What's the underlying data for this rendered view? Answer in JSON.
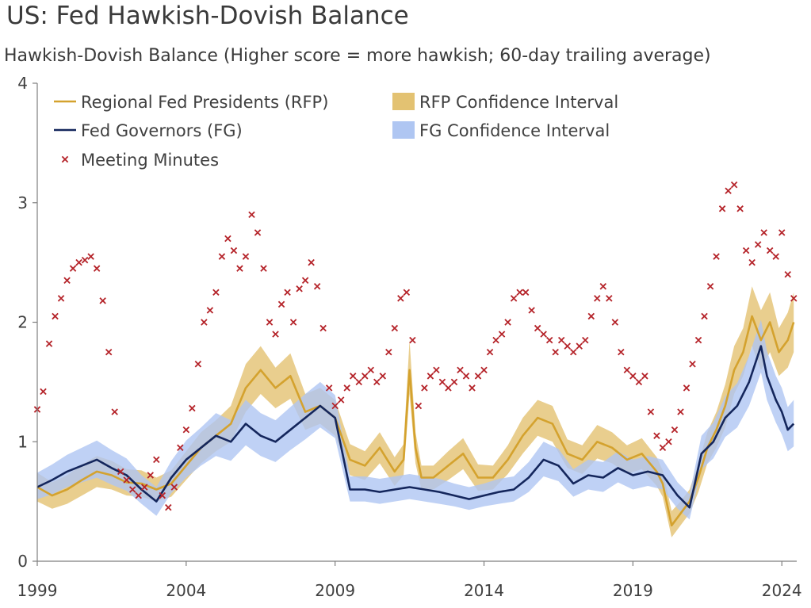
{
  "title": "US: Fed Hawkish-Dovish Balance",
  "colors": {
    "rfp_line": "#D4A22E",
    "rfp_band": "#E3C272",
    "fg_line": "#14265C",
    "fg_band": "#AFC6F2",
    "minutes_marker": "#B5242A",
    "axis": "#7F7F7F",
    "text": "#404040"
  },
  "chart_data": {
    "type": "line",
    "title": "US: Fed Hawkish-Dovish Balance",
    "subtitle": "Hawkish-Dovish Balance (Higher score = more hawkish; 60-day trailing average)",
    "xlabel": "",
    "ylabel": "",
    "xlim": [
      1999.0,
      2024.5
    ],
    "ylim": [
      0,
      4
    ],
    "x_ticks": [
      1999,
      2004,
      2009,
      2014,
      2019,
      2024
    ],
    "y_ticks": [
      0,
      1,
      2,
      3,
      4
    ],
    "grid": false,
    "legend_position": "top-left",
    "legend": [
      {
        "label": "Regional Fed Presidents (RFP)",
        "kind": "line",
        "series": "rfp"
      },
      {
        "label": "RFP Confidence Interval",
        "kind": "band",
        "series": "rfp_ci"
      },
      {
        "label": "Fed Governors (FG)",
        "kind": "line",
        "series": "fg"
      },
      {
        "label": "FG Confidence Interval",
        "kind": "band",
        "series": "fg_ci"
      },
      {
        "label": "Meeting Minutes",
        "kind": "marker",
        "series": "minutes"
      }
    ],
    "series": [
      {
        "id": "rfp",
        "name": "Regional Fed Presidents (RFP)",
        "x": [
          1999.0,
          1999.5,
          2000.0,
          2000.5,
          2001.0,
          2001.5,
          2002.0,
          2002.5,
          2003.0,
          2003.5,
          2004.0,
          2004.5,
          2005.0,
          2005.5,
          2006.0,
          2006.5,
          2007.0,
          2007.5,
          2008.0,
          2008.5,
          2009.0,
          2009.5,
          2010.0,
          2010.5,
          2011.0,
          2011.3,
          2011.5,
          2011.7,
          2011.9,
          2012.3,
          2012.8,
          2013.3,
          2013.8,
          2014.3,
          2014.8,
          2015.3,
          2015.8,
          2016.3,
          2016.8,
          2017.3,
          2017.8,
          2018.3,
          2018.8,
          2019.3,
          2019.8,
          2020.0,
          2020.3,
          2020.6,
          2020.9,
          2021.2,
          2021.5,
          2021.8,
          2022.1,
          2022.4,
          2022.7,
          2023.0,
          2023.3,
          2023.6,
          2023.9,
          2024.2,
          2024.4
        ],
        "values": [
          0.62,
          0.55,
          0.6,
          0.68,
          0.75,
          0.72,
          0.66,
          0.65,
          0.6,
          0.65,
          0.8,
          0.95,
          1.05,
          1.15,
          1.45,
          1.6,
          1.45,
          1.55,
          1.25,
          1.3,
          1.2,
          0.85,
          0.8,
          0.95,
          0.75,
          0.85,
          1.6,
          0.95,
          0.7,
          0.7,
          0.8,
          0.9,
          0.7,
          0.7,
          0.85,
          1.05,
          1.2,
          1.15,
          0.9,
          0.85,
          1.0,
          0.95,
          0.85,
          0.9,
          0.75,
          0.65,
          0.3,
          0.4,
          0.5,
          0.7,
          0.95,
          1.1,
          1.3,
          1.6,
          1.75,
          2.05,
          1.85,
          2.0,
          1.75,
          1.85,
          2.0
        ]
      },
      {
        "id": "rfp_ci",
        "name": "RFP Confidence Interval",
        "x": [
          1999.0,
          1999.5,
          2000.0,
          2000.5,
          2001.0,
          2001.5,
          2002.0,
          2002.5,
          2003.0,
          2003.5,
          2004.0,
          2004.5,
          2005.0,
          2005.5,
          2006.0,
          2006.5,
          2007.0,
          2007.5,
          2008.0,
          2008.5,
          2009.0,
          2009.5,
          2010.0,
          2010.5,
          2011.0,
          2011.3,
          2011.5,
          2011.7,
          2011.9,
          2012.3,
          2012.8,
          2013.3,
          2013.8,
          2014.3,
          2014.8,
          2015.3,
          2015.8,
          2016.3,
          2016.8,
          2017.3,
          2017.8,
          2018.3,
          2018.8,
          2019.3,
          2019.8,
          2020.0,
          2020.3,
          2020.6,
          2020.9,
          2021.2,
          2021.5,
          2021.8,
          2022.1,
          2022.4,
          2022.7,
          2023.0,
          2023.3,
          2023.6,
          2023.9,
          2024.2,
          2024.4
        ],
        "lower": [
          0.5,
          0.44,
          0.48,
          0.55,
          0.62,
          0.6,
          0.55,
          0.54,
          0.5,
          0.54,
          0.68,
          0.82,
          0.92,
          1.0,
          1.25,
          1.4,
          1.28,
          1.36,
          1.1,
          1.15,
          1.05,
          0.72,
          0.68,
          0.82,
          0.63,
          0.72,
          1.4,
          0.82,
          0.6,
          0.6,
          0.68,
          0.77,
          0.59,
          0.6,
          0.73,
          0.9,
          1.05,
          1.0,
          0.78,
          0.73,
          0.86,
          0.82,
          0.73,
          0.77,
          0.63,
          0.54,
          0.2,
          0.3,
          0.4,
          0.58,
          0.82,
          0.95,
          1.12,
          1.4,
          1.55,
          1.8,
          1.6,
          1.75,
          1.55,
          1.62,
          1.75
        ],
        "upper": [
          0.74,
          0.66,
          0.72,
          0.81,
          0.88,
          0.84,
          0.77,
          0.76,
          0.7,
          0.76,
          0.92,
          1.08,
          1.18,
          1.3,
          1.65,
          1.8,
          1.62,
          1.74,
          1.4,
          1.45,
          1.35,
          0.98,
          0.92,
          1.08,
          0.87,
          0.98,
          1.85,
          1.08,
          0.8,
          0.8,
          0.92,
          1.03,
          0.81,
          0.8,
          0.97,
          1.2,
          1.35,
          1.3,
          1.02,
          0.97,
          1.14,
          1.08,
          0.97,
          1.03,
          0.87,
          0.76,
          0.42,
          0.5,
          0.6,
          0.82,
          1.08,
          1.25,
          1.48,
          1.8,
          1.95,
          2.3,
          2.1,
          2.25,
          1.95,
          2.08,
          2.25
        ]
      },
      {
        "id": "fg",
        "name": "Fed Governors (FG)",
        "x": [
          1999.0,
          1999.5,
          2000.0,
          2000.5,
          2001.0,
          2001.5,
          2002.0,
          2002.5,
          2003.0,
          2003.5,
          2004.0,
          2004.5,
          2005.0,
          2005.5,
          2006.0,
          2006.5,
          2007.0,
          2007.5,
          2008.0,
          2008.5,
          2009.0,
          2009.5,
          2010.0,
          2010.5,
          2011.0,
          2011.5,
          2012.0,
          2012.5,
          2013.0,
          2013.5,
          2014.0,
          2014.5,
          2015.0,
          2015.5,
          2016.0,
          2016.5,
          2017.0,
          2017.5,
          2018.0,
          2018.5,
          2019.0,
          2019.5,
          2020.0,
          2020.5,
          2020.9,
          2021.3,
          2021.7,
          2022.1,
          2022.5,
          2022.9,
          2023.3,
          2023.5,
          2023.8,
          2024.0,
          2024.2,
          2024.4
        ],
        "values": [
          0.62,
          0.68,
          0.75,
          0.8,
          0.85,
          0.78,
          0.72,
          0.6,
          0.5,
          0.7,
          0.85,
          0.95,
          1.05,
          1.0,
          1.15,
          1.05,
          1.0,
          1.1,
          1.2,
          1.3,
          1.2,
          0.6,
          0.6,
          0.58,
          0.6,
          0.62,
          0.6,
          0.58,
          0.55,
          0.52,
          0.55,
          0.58,
          0.6,
          0.7,
          0.85,
          0.8,
          0.65,
          0.72,
          0.7,
          0.78,
          0.72,
          0.75,
          0.72,
          0.55,
          0.45,
          0.9,
          1.0,
          1.2,
          1.3,
          1.5,
          1.8,
          1.55,
          1.35,
          1.25,
          1.1,
          1.15
        ]
      },
      {
        "id": "fg_ci",
        "name": "FG Confidence Interval",
        "x": [
          1999.0,
          1999.5,
          2000.0,
          2000.5,
          2001.0,
          2001.5,
          2002.0,
          2002.5,
          2003.0,
          2003.5,
          2004.0,
          2004.5,
          2005.0,
          2005.5,
          2006.0,
          2006.5,
          2007.0,
          2007.5,
          2008.0,
          2008.5,
          2009.0,
          2009.5,
          2010.0,
          2010.5,
          2011.0,
          2011.5,
          2012.0,
          2012.5,
          2013.0,
          2013.5,
          2014.0,
          2014.5,
          2015.0,
          2015.5,
          2016.0,
          2016.5,
          2017.0,
          2017.5,
          2018.0,
          2018.5,
          2019.0,
          2019.5,
          2020.0,
          2020.5,
          2020.9,
          2021.3,
          2021.7,
          2022.1,
          2022.5,
          2022.9,
          2023.3,
          2023.5,
          2023.8,
          2024.0,
          2024.2,
          2024.4
        ],
        "lower": [
          0.52,
          0.56,
          0.62,
          0.66,
          0.7,
          0.64,
          0.59,
          0.48,
          0.38,
          0.57,
          0.7,
          0.8,
          0.88,
          0.84,
          0.97,
          0.88,
          0.83,
          0.93,
          1.02,
          1.12,
          1.03,
          0.5,
          0.5,
          0.48,
          0.5,
          0.52,
          0.5,
          0.48,
          0.46,
          0.43,
          0.46,
          0.48,
          0.5,
          0.58,
          0.71,
          0.67,
          0.54,
          0.6,
          0.58,
          0.66,
          0.6,
          0.63,
          0.6,
          0.44,
          0.35,
          0.77,
          0.86,
          1.04,
          1.12,
          1.3,
          1.58,
          1.35,
          1.16,
          1.06,
          0.92,
          0.96
        ],
        "upper": [
          0.74,
          0.81,
          0.89,
          0.95,
          1.01,
          0.93,
          0.86,
          0.72,
          0.62,
          0.84,
          1.01,
          1.12,
          1.24,
          1.18,
          1.35,
          1.24,
          1.18,
          1.29,
          1.4,
          1.5,
          1.39,
          0.71,
          0.71,
          0.69,
          0.71,
          0.73,
          0.71,
          0.69,
          0.65,
          0.62,
          0.65,
          0.69,
          0.71,
          0.83,
          1.0,
          0.94,
          0.77,
          0.85,
          0.83,
          0.92,
          0.85,
          0.88,
          0.85,
          0.66,
          0.56,
          1.05,
          1.16,
          1.38,
          1.49,
          1.72,
          2.02,
          1.76,
          1.55,
          1.45,
          1.29,
          1.35
        ]
      },
      {
        "id": "minutes",
        "name": "Meeting Minutes",
        "marker": "x",
        "x": [
          1999.0,
          1999.2,
          1999.4,
          1999.6,
          1999.8,
          2000.0,
          2000.2,
          2000.4,
          2000.6,
          2000.8,
          2001.0,
          2001.2,
          2001.4,
          2001.6,
          2001.8,
          2002.0,
          2002.2,
          2002.4,
          2002.6,
          2002.8,
          2003.0,
          2003.2,
          2003.4,
          2003.6,
          2003.8,
          2004.0,
          2004.2,
          2004.4,
          2004.6,
          2004.8,
          2005.0,
          2005.2,
          2005.4,
          2005.6,
          2005.8,
          2006.0,
          2006.2,
          2006.4,
          2006.6,
          2006.8,
          2007.0,
          2007.2,
          2007.4,
          2007.6,
          2007.8,
          2008.0,
          2008.2,
          2008.4,
          2008.6,
          2008.8,
          2009.0,
          2009.2,
          2009.4,
          2009.6,
          2009.8,
          2010.0,
          2010.2,
          2010.4,
          2010.6,
          2010.8,
          2011.0,
          2011.2,
          2011.4,
          2011.6,
          2011.8,
          2012.0,
          2012.2,
          2012.4,
          2012.6,
          2012.8,
          2013.0,
          2013.2,
          2013.4,
          2013.6,
          2013.8,
          2014.0,
          2014.2,
          2014.4,
          2014.6,
          2014.8,
          2015.0,
          2015.2,
          2015.4,
          2015.6,
          2015.8,
          2016.0,
          2016.2,
          2016.4,
          2016.6,
          2016.8,
          2017.0,
          2017.2,
          2017.4,
          2017.6,
          2017.8,
          2018.0,
          2018.2,
          2018.4,
          2018.6,
          2018.8,
          2019.0,
          2019.2,
          2019.4,
          2019.6,
          2019.8,
          2020.0,
          2020.2,
          2020.4,
          2020.6,
          2020.8,
          2021.0,
          2021.2,
          2021.4,
          2021.6,
          2021.8,
          2022.0,
          2022.2,
          2022.4,
          2022.6,
          2022.8,
          2023.0,
          2023.2,
          2023.4,
          2023.6,
          2023.8,
          2024.0,
          2024.2,
          2024.4
        ],
        "values": [
          1.27,
          1.42,
          1.82,
          2.05,
          2.2,
          2.35,
          2.45,
          2.5,
          2.52,
          2.55,
          2.45,
          2.18,
          1.75,
          1.25,
          0.75,
          0.68,
          0.6,
          0.55,
          0.62,
          0.72,
          0.85,
          0.55,
          0.45,
          0.62,
          0.95,
          1.1,
          1.28,
          1.65,
          2.0,
          2.1,
          2.25,
          2.55,
          2.7,
          2.6,
          2.45,
          2.55,
          2.9,
          2.75,
          2.45,
          2.0,
          1.9,
          2.15,
          2.25,
          2.0,
          2.28,
          2.35,
          2.5,
          2.3,
          1.95,
          1.45,
          1.3,
          1.35,
          1.45,
          1.55,
          1.5,
          1.55,
          1.6,
          1.5,
          1.55,
          1.75,
          1.95,
          2.2,
          2.25,
          1.85,
          1.3,
          1.45,
          1.55,
          1.6,
          1.5,
          1.45,
          1.5,
          1.6,
          1.55,
          1.45,
          1.55,
          1.6,
          1.75,
          1.85,
          1.9,
          2.0,
          2.2,
          2.25,
          2.25,
          2.1,
          1.95,
          1.9,
          1.85,
          1.75,
          1.85,
          1.8,
          1.75,
          1.8,
          1.85,
          2.05,
          2.2,
          2.3,
          2.2,
          2.0,
          1.75,
          1.6,
          1.55,
          1.5,
          1.55,
          1.25,
          1.05,
          0.95,
          1.0,
          1.1,
          1.25,
          1.45,
          1.65,
          1.85,
          2.05,
          2.3,
          2.55,
          2.95,
          3.1,
          3.15,
          2.95,
          2.6,
          2.5,
          2.65,
          2.75,
          2.6,
          2.55,
          2.75,
          2.4,
          2.2
        ]
      }
    ]
  }
}
